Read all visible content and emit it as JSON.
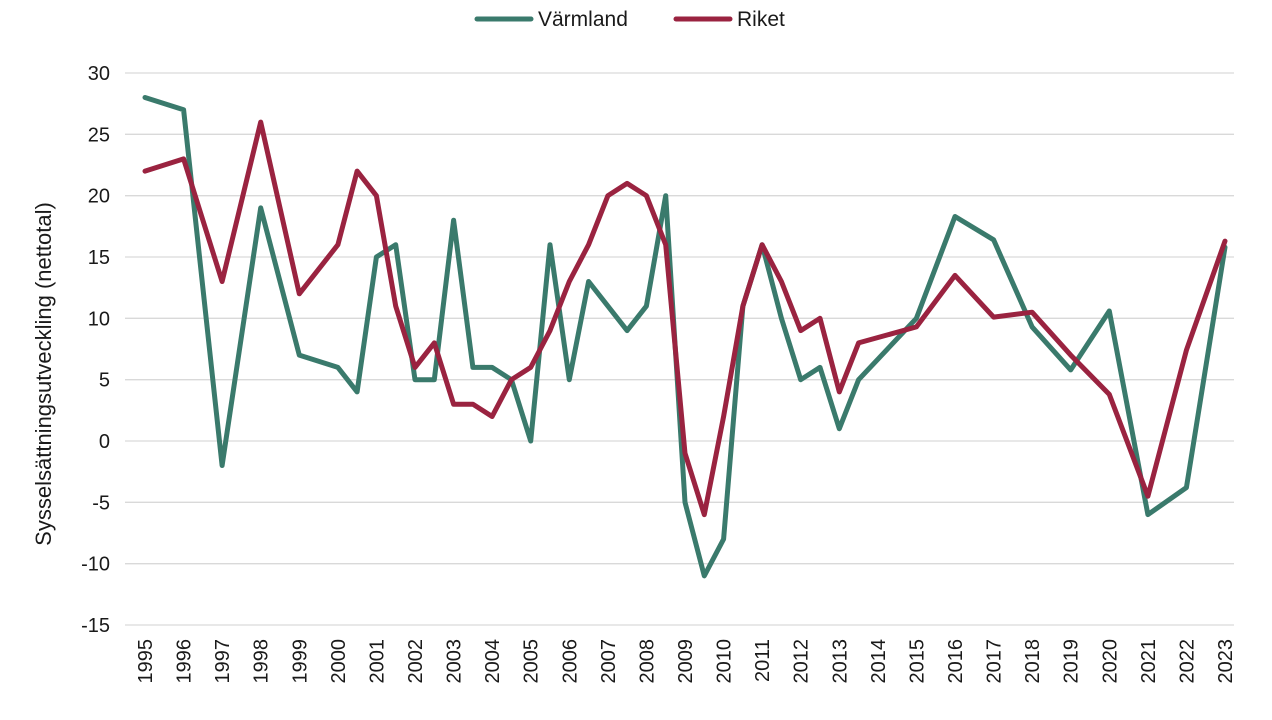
{
  "chart_data": {
    "type": "line",
    "xlabel": "",
    "ylabel": "Sysselsättningsutveckling (nettotal)",
    "ylim": [
      -15,
      30
    ],
    "ytick_step": 5,
    "grid": "horizontal",
    "legend_position": "top-center",
    "year_labels": [
      "1995",
      "1996",
      "1997",
      "1998",
      "1999",
      "2000",
      "2001",
      "2002",
      "2003",
      "2004",
      "2005",
      "2006",
      "2007",
      "2008",
      "2009",
      "2010",
      "2011",
      "2012",
      "2013",
      "2014",
      "2015",
      "2016",
      "2017",
      "2018",
      "2019",
      "2020",
      "2021",
      "2022",
      "2023"
    ],
    "series": [
      {
        "name": "Värmland",
        "color": "#3a7a6c",
        "points": [
          [
            1995,
            28
          ],
          [
            1996,
            27
          ],
          [
            1997,
            -2
          ],
          [
            1998,
            19
          ],
          [
            1999,
            7
          ],
          [
            2000,
            6
          ],
          [
            2000.5,
            4
          ],
          [
            2001,
            15
          ],
          [
            2001.5,
            16
          ],
          [
            2002,
            5
          ],
          [
            2002.5,
            5
          ],
          [
            2003,
            18
          ],
          [
            2003.5,
            6
          ],
          [
            2004,
            6
          ],
          [
            2004.5,
            5
          ],
          [
            2005,
            0
          ],
          [
            2005.5,
            16
          ],
          [
            2006,
            5
          ],
          [
            2006.5,
            13
          ],
          [
            2007.5,
            9
          ],
          [
            2008,
            11
          ],
          [
            2008.5,
            20
          ],
          [
            2009,
            -5
          ],
          [
            2009.5,
            -11
          ],
          [
            2010,
            -8
          ],
          [
            2010.5,
            11
          ],
          [
            2011,
            16
          ],
          [
            2011.5,
            10
          ],
          [
            2012,
            5
          ],
          [
            2012.5,
            6
          ],
          [
            2013,
            1
          ],
          [
            2013.5,
            5
          ],
          [
            2015,
            10
          ],
          [
            2016,
            18.3
          ],
          [
            2017,
            16.4
          ],
          [
            2018,
            9.3
          ],
          [
            2019,
            5.8
          ],
          [
            2020,
            10.6
          ],
          [
            2021,
            -6
          ],
          [
            2022,
            -3.8
          ],
          [
            2023,
            15.8
          ]
        ]
      },
      {
        "name": "Riket",
        "color": "#9a2340",
        "points": [
          [
            1995,
            22
          ],
          [
            1996,
            23
          ],
          [
            1997,
            13
          ],
          [
            1998,
            26
          ],
          [
            1999,
            12
          ],
          [
            2000,
            16
          ],
          [
            2000.5,
            22
          ],
          [
            2001,
            20
          ],
          [
            2001.5,
            11
          ],
          [
            2002,
            6
          ],
          [
            2002.5,
            8
          ],
          [
            2003,
            3
          ],
          [
            2003.5,
            3
          ],
          [
            2004,
            2
          ],
          [
            2004.5,
            5
          ],
          [
            2005,
            6
          ],
          [
            2005.5,
            9
          ],
          [
            2006,
            13
          ],
          [
            2006.5,
            16
          ],
          [
            2007,
            20
          ],
          [
            2007.5,
            21
          ],
          [
            2008,
            20
          ],
          [
            2008.5,
            16
          ],
          [
            2009,
            -1
          ],
          [
            2009.5,
            -6
          ],
          [
            2010,
            2
          ],
          [
            2010.5,
            11
          ],
          [
            2011,
            16
          ],
          [
            2011.5,
            13
          ],
          [
            2012,
            9
          ],
          [
            2012.5,
            10
          ],
          [
            2013,
            4
          ],
          [
            2013.5,
            8
          ],
          [
            2015,
            9.3
          ],
          [
            2016,
            13.5
          ],
          [
            2017,
            10.1
          ],
          [
            2018,
            10.5
          ],
          [
            2019,
            7
          ],
          [
            2020,
            3.8
          ],
          [
            2021,
            -4.5
          ],
          [
            2022,
            7.4
          ],
          [
            2023,
            16.3
          ]
        ]
      }
    ]
  }
}
